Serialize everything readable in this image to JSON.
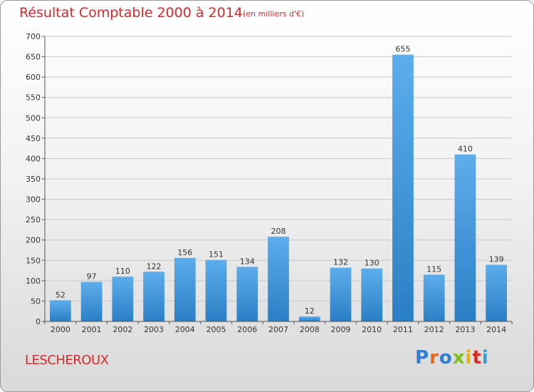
{
  "header": {
    "title": "Résultat Comptable 2000 à 2014",
    "subtitle": "(en milliers d'€)"
  },
  "footer": {
    "location": "LESCHEROUX",
    "logo": {
      "letters": [
        "P",
        "r",
        "o",
        "x",
        "i",
        "t",
        "i"
      ],
      "colors": [
        "#2f7fd6",
        "#e36a1a",
        "#2f7fd6",
        "#7bbf1e",
        "#e4b01a",
        "#d62b2b",
        "#2f9fd6"
      ]
    }
  },
  "colors": {
    "bar_light": "#5dadec",
    "bar_dark": "#2a7fc4",
    "grid": "#c8c8c8",
    "axis": "#555555"
  },
  "chart_data": {
    "type": "bar",
    "title": "Résultat Comptable 2000 à 2014",
    "xlabel": "",
    "ylabel": "",
    "ylim": [
      0,
      700
    ],
    "yticks": [
      0,
      50,
      100,
      150,
      200,
      250,
      300,
      350,
      400,
      450,
      500,
      550,
      600,
      650,
      700
    ],
    "grid": true,
    "categories": [
      "2000",
      "2001",
      "2002",
      "2003",
      "2004",
      "2005",
      "2006",
      "2007",
      "2008",
      "2009",
      "2010",
      "2011",
      "2012",
      "2013",
      "2014"
    ],
    "values": [
      52,
      97,
      110,
      122,
      156,
      151,
      134,
      208,
      12,
      132,
      130,
      655,
      115,
      410,
      139
    ]
  }
}
